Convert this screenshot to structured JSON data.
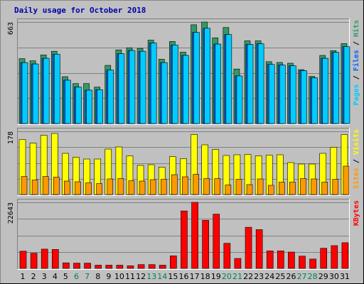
{
  "chart_data": {
    "type": "bar",
    "title": "Daily usage for October 2018",
    "categories": [
      "1",
      "2",
      "3",
      "4",
      "5",
      "6",
      "7",
      "8",
      "9",
      "10",
      "11",
      "12",
      "13",
      "14",
      "15",
      "16",
      "17",
      "18",
      "19",
      "20",
      "21",
      "22",
      "23",
      "24",
      "25",
      "26",
      "27",
      "28",
      "29",
      "30",
      "31"
    ],
    "weekend_days": [
      "6",
      "7",
      "13",
      "14",
      "20",
      "21",
      "27",
      "28"
    ],
    "panels": [
      {
        "name": "top",
        "ymax": 663,
        "ymax_label": "663",
        "series": [
          {
            "name": "Hits",
            "color": "#339966",
            "values": [
              424,
              410,
              448,
              472,
              306,
              261,
              261,
              238,
              380,
              481,
              495,
              491,
              545,
              420,
              536,
              466,
              645,
              663,
              560,
              627,
              356,
              540,
              540,
              404,
              399,
              394,
              352,
              308,
              445,
              476,
              522
            ]
          },
          {
            "name": "Files",
            "color": "#0066ff",
            "values": [
              398,
              389,
              426,
              453,
              283,
              238,
              218,
              221,
              349,
              456,
              477,
              472,
              526,
              398,
              513,
              445,
              595,
              622,
              519,
              581,
              311,
              517,
              521,
              386,
              382,
              377,
              345,
              299,
              426,
              465,
              502
            ]
          },
          {
            "name": "Pages",
            "color": "#00ccff",
            "values": [
              398,
              389,
              426,
              453,
              283,
              238,
              218,
              221,
              349,
              456,
              477,
              472,
              526,
              398,
              513,
              445,
              595,
              622,
              519,
              581,
              311,
              517,
              521,
              386,
              382,
              377,
              345,
              299,
              426,
              465,
              502
            ]
          }
        ],
        "legend": [
          {
            "text": "Pages",
            "color": "#00ccff"
          },
          {
            "text": " / ",
            "color": "#000000"
          },
          {
            "text": "Files",
            "color": "#0066ff"
          },
          {
            "text": " / ",
            "color": "#000000"
          },
          {
            "text": "Hits",
            "color": "#339966"
          }
        ]
      },
      {
        "name": "middle",
        "ymax": 178,
        "ymax_label": "178",
        "series": [
          {
            "name": "Visits",
            "color": "#ffff00",
            "values": [
              155,
              145,
              167,
              172,
              116,
              105,
              100,
              100,
              128,
              134,
              109,
              82,
              84,
              77,
              107,
              101,
              169,
              140,
              127,
              110,
              112,
              113,
              109,
              111,
              112,
              90,
              86,
              86,
              116,
              133,
              169
            ]
          },
          {
            "name": "Sites",
            "color": "#ff9900",
            "values": [
              51,
              41,
              51,
              49,
              38,
              36,
              33,
              31,
              44,
              45,
              39,
              38,
              42,
              43,
              56,
              50,
              57,
              45,
              45,
              27,
              43,
              28,
              44,
              26,
              35,
              35,
              45,
              44,
              35,
              43,
              80
            ]
          }
        ],
        "legend": [
          {
            "text": "Sites",
            "color": "#ff9900"
          },
          {
            "text": " / ",
            "color": "#000000"
          },
          {
            "text": "Visits",
            "color": "#ffff00"
          }
        ]
      },
      {
        "name": "bottom",
        "ymax": 22643,
        "ymax_label": "22643",
        "series": [
          {
            "name": "KBytes",
            "color": "#ff0000",
            "values": [
              5900,
              5200,
              6600,
              6500,
              1900,
              1800,
              1800,
              1100,
              1100,
              1100,
              900,
              1300,
              1300,
              1100,
              4300,
              19700,
              22643,
              16500,
              18600,
              8600,
              3400,
              14100,
              13300,
              6000,
              6000,
              5600,
              4200,
              3200,
              6900,
              7800,
              8800
            ]
          }
        ],
        "legend": [
          {
            "text": "KBytes",
            "color": "#ff0000"
          }
        ]
      }
    ],
    "grid": true
  }
}
